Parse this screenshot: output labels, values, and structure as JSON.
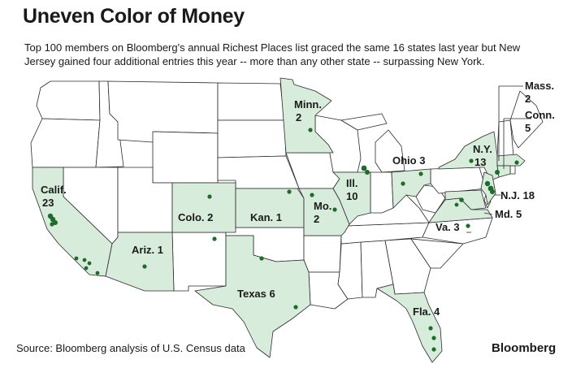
{
  "title": "Uneven Color of Money",
  "subtitle": "Top 100 members on Bloomberg's annual Richest Places list graced the same 16 states last year but New Jersey gained four additional entries this year -- more than any other state --  surpassing New York.",
  "source": "Source: Bloomberg analysis of U.S. Census data",
  "brand": "Bloomberg",
  "colors": {
    "highlight": "#d8ecdc",
    "dot": "#1e6b2a",
    "border": "#2a2a2a"
  },
  "states": [
    {
      "name": "Calif.",
      "count": "23"
    },
    {
      "name": "Ariz.",
      "count": "1"
    },
    {
      "name": "Colo.",
      "count": "2"
    },
    {
      "name": "Kan.",
      "count": "1"
    },
    {
      "name": "Texas",
      "count": "6"
    },
    {
      "name": "Minn.",
      "count": "2"
    },
    {
      "name": "Mo.",
      "count": "2"
    },
    {
      "name": "Ill.",
      "count": "10"
    },
    {
      "name": "Ohio",
      "count": "3"
    },
    {
      "name": "N.Y.",
      "count": "13"
    },
    {
      "name": "Mass.",
      "count": "2"
    },
    {
      "name": "Conn.",
      "count": "5"
    },
    {
      "name": "N.J.",
      "count": "18"
    },
    {
      "name": "Md.",
      "count": "5"
    },
    {
      "name": "Va.",
      "count": "3"
    },
    {
      "name": "Fla.",
      "count": "4"
    }
  ]
}
